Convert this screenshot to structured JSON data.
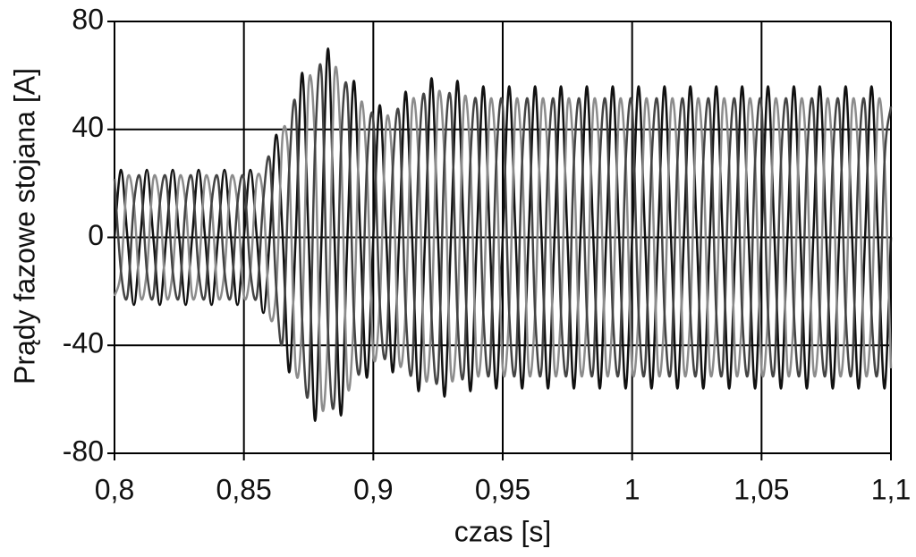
{
  "chart_data": {
    "type": "line",
    "y_label": "Prądy fazowe stojana [A]",
    "x_label": "czas [s]",
    "x": [
      0.8,
      0.8025,
      0.805,
      0.8075,
      0.81,
      0.8125,
      0.815,
      0.8175,
      0.82,
      0.8225,
      0.825,
      0.8275,
      0.83,
      0.8325,
      0.835,
      0.8375,
      0.84,
      0.8425,
      0.845,
      0.8475,
      0.85,
      0.8525,
      0.855,
      0.8575,
      0.86,
      0.8625,
      0.865,
      0.8675,
      0.87,
      0.8725,
      0.875,
      0.8775,
      0.88,
      0.8825,
      0.885,
      0.8875,
      0.89,
      0.8925,
      0.895,
      0.8975,
      0.9,
      0.9025,
      0.905,
      0.9075,
      0.91,
      0.9125,
      0.915,
      0.9175,
      0.92,
      0.9225,
      0.925,
      0.9275,
      0.93,
      0.9325,
      0.935,
      0.9375,
      0.94,
      0.9425,
      0.945,
      0.9475,
      0.95,
      0.9525,
      0.955,
      0.9575,
      0.96,
      0.9625,
      0.965,
      0.9675,
      0.97,
      0.9725,
      0.975,
      0.9775,
      0.98,
      0.9825,
      0.985,
      0.9875,
      0.99,
      0.9925,
      0.995,
      0.9975,
      1,
      1.0025,
      1.005,
      1.0075,
      1.01,
      1.0125,
      1.015,
      1.0175,
      1.02,
      1.0225,
      1.025,
      1.0275,
      1.03,
      1.0325,
      1.035,
      1.0375,
      1.04,
      1.0425,
      1.045,
      1.0475,
      1.05,
      1.0525,
      1.055,
      1.0575,
      1.06,
      1.0625,
      1.065,
      1.0675,
      1.07,
      1.0725,
      1.075,
      1.0775,
      1.08,
      1.0825,
      1.085,
      1.0875,
      1.09,
      1.0925,
      1.095,
      1.0975,
      1.1
    ],
    "series": [
      {
        "color": "#111111",
        "values": [
          0,
          25,
          0,
          -25,
          0,
          25,
          0,
          -25,
          0,
          25,
          0,
          -25,
          0,
          25,
          0,
          -25,
          0,
          25,
          0,
          -25,
          0,
          25,
          0,
          -28,
          0,
          38,
          0,
          -50,
          0,
          61,
          0,
          -68,
          0,
          70,
          0,
          -66,
          0,
          58,
          0,
          -52,
          0,
          49,
          0,
          -50,
          0,
          54,
          0,
          -57,
          0,
          59,
          0,
          -59,
          0,
          58,
          0,
          -57,
          0,
          56,
          0,
          -56,
          0,
          56,
          0,
          -56,
          0,
          56,
          0,
          -56,
          0,
          56,
          0,
          -56,
          0,
          56,
          0,
          -56,
          0,
          56,
          0,
          -56,
          0,
          56,
          0,
          -56,
          0,
          56,
          0,
          -56,
          0,
          56,
          0,
          -56,
          0,
          56,
          0,
          -56,
          0,
          56,
          0,
          -56,
          0,
          56,
          0,
          -56,
          0,
          56,
          0,
          -56,
          0,
          56,
          0,
          -56,
          0,
          56,
          0,
          -56,
          0,
          56,
          0,
          -56,
          0
        ]
      },
      {
        "color": "#8c8c8c",
        "values": [
          -21.7,
          -12.5,
          21.7,
          12.5,
          -21.7,
          -12.5,
          21.7,
          12.5,
          -21.7,
          -12.5,
          21.7,
          12.5,
          -21.7,
          -12.5,
          21.7,
          12.5,
          -21.7,
          -12.5,
          21.7,
          12.5,
          -21.7,
          -12.5,
          21.7,
          14,
          -28.6,
          -19,
          38.1,
          25,
          -48.5,
          -30.5,
          56.3,
          34,
          -60.6,
          -35,
          59.8,
          33,
          -53.7,
          -29,
          47.6,
          26,
          -43.3,
          -24.5,
          42.4,
          25,
          -45,
          -27,
          48.5,
          28.5,
          -50.2,
          -29.5,
          51.1,
          29.5,
          -50.2,
          -29,
          49.4,
          28.5,
          -48.5,
          -28,
          48.5,
          28,
          -48.5,
          -28,
          48.5,
          28,
          -48.5,
          -28,
          48.5,
          28,
          -48.5,
          -28,
          48.5,
          28,
          -48.5,
          -28,
          48.5,
          28,
          -48.5,
          -28,
          48.5,
          28,
          -48.5,
          -28,
          48.5,
          28,
          -48.5,
          -28,
          48.5,
          28,
          -48.5,
          -28,
          48.5,
          28,
          -48.5,
          -28,
          48.5,
          28,
          -48.5,
          -28,
          48.5,
          28,
          -48.5,
          -28,
          48.5,
          28,
          -48.5,
          -28,
          48.5,
          28,
          -48.5,
          -28,
          48.5,
          28,
          -48.5,
          -28,
          48.5,
          28,
          -48.5,
          -28,
          48.5,
          28,
          -48.5
        ]
      },
      {
        "color": "#444444",
        "values": [
          21.7,
          -12.5,
          -21.7,
          12.5,
          21.7,
          -12.5,
          -21.7,
          12.5,
          21.7,
          -12.5,
          -21.7,
          12.5,
          21.7,
          -12.5,
          -21.7,
          12.5,
          21.7,
          -12.5,
          -21.7,
          12.5,
          21.7,
          -12.5,
          -21.7,
          14,
          28.6,
          -19,
          -38.1,
          25,
          48.5,
          -30.5,
          -56.3,
          34,
          60.6,
          -35,
          -59.8,
          33,
          53.7,
          -29,
          -47.6,
          26,
          43.3,
          -24.5,
          -42.4,
          25,
          45,
          -27,
          -48.5,
          28.5,
          50.2,
          -29.5,
          -51.1,
          29.5,
          50.2,
          -29,
          -49.4,
          28.5,
          48.5,
          -28,
          -48.5,
          28,
          48.5,
          -28,
          -48.5,
          28,
          48.5,
          -28,
          -48.5,
          28,
          48.5,
          -28,
          -48.5,
          28,
          48.5,
          -28,
          -48.5,
          28,
          48.5,
          -28,
          -48.5,
          28,
          48.5,
          -28,
          -48.5,
          28,
          48.5,
          -28,
          -48.5,
          28,
          48.5,
          -28,
          -48.5,
          28,
          48.5,
          -28,
          -48.5,
          28,
          48.5,
          -28,
          -48.5,
          28,
          48.5,
          -28,
          -48.5,
          28,
          48.5,
          -28,
          -48.5,
          28,
          48.5,
          -28,
          -48.5,
          28,
          48.5,
          -28,
          -48.5,
          28,
          48.5,
          -28,
          -48.5,
          28,
          48.5
        ]
      }
    ],
    "xlim": [
      0.8,
      1.1
    ],
    "xticks": [
      {
        "value": 0.8,
        "label": "0,8"
      },
      {
        "value": 0.85,
        "label": "0,85"
      },
      {
        "value": 0.9,
        "label": "0,9"
      },
      {
        "value": 0.95,
        "label": "0,95"
      },
      1,
      {
        "value": 1.05,
        "label": "1,05"
      },
      {
        "value": 1.1,
        "label": "1,1"
      }
    ],
    "ylim": [
      -80,
      80
    ],
    "yticks": [
      -80,
      -40,
      0,
      40,
      80
    ],
    "grid": true
  }
}
